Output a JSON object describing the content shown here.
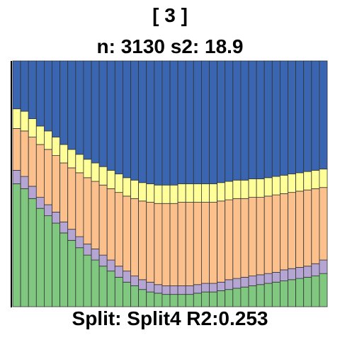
{
  "header": {
    "node": "[ 3 ]",
    "stats": "n: 3130 s2: 18.9"
  },
  "footer": {
    "split": "Split: Split4 R2:0.253"
  },
  "colors": {
    "green": "#80c880",
    "purple": "#b4a5d2",
    "orange": "#fcc08c",
    "yellow": "#ffff99",
    "blue": "#3a65b0",
    "edge": "#333333"
  },
  "chart_data": {
    "type": "bar",
    "stacked": true,
    "normalized": true,
    "bar_count": 40,
    "ylim": [
      0,
      1
    ],
    "series": [
      {
        "color": "green",
        "values": [
          0.5,
          0.48,
          0.44,
          0.4,
          0.37,
          0.34,
          0.3,
          0.27,
          0.24,
          0.21,
          0.19,
          0.165,
          0.145,
          0.12,
          0.1,
          0.085,
          0.07,
          0.06,
          0.055,
          0.05,
          0.05,
          0.05,
          0.05,
          0.055,
          0.06,
          0.06,
          0.065,
          0.07,
          0.075,
          0.08,
          0.085,
          0.09,
          0.095,
          0.1,
          0.105,
          0.11,
          0.115,
          0.12,
          0.125,
          0.135
        ]
      },
      {
        "color": "purple",
        "values": [
          0.055,
          0.05,
          0.05,
          0.045,
          0.045,
          0.045,
          0.045,
          0.045,
          0.045,
          0.045,
          0.045,
          0.045,
          0.045,
          0.045,
          0.045,
          0.04,
          0.04,
          0.04,
          0.035,
          0.035,
          0.035,
          0.035,
          0.035,
          0.035,
          0.035,
          0.035,
          0.035,
          0.04,
          0.04,
          0.04,
          0.04,
          0.04,
          0.04,
          0.04,
          0.045,
          0.045,
          0.045,
          0.045,
          0.05,
          0.055
        ]
      },
      {
        "color": "orange",
        "values": [
          0.17,
          0.185,
          0.2,
          0.215,
          0.225,
          0.23,
          0.24,
          0.25,
          0.26,
          0.27,
          0.275,
          0.285,
          0.29,
          0.3,
          0.305,
          0.315,
          0.32,
          0.325,
          0.33,
          0.335,
          0.335,
          0.34,
          0.34,
          0.335,
          0.33,
          0.33,
          0.33,
          0.325,
          0.325,
          0.32,
          0.32,
          0.315,
          0.315,
          0.315,
          0.31,
          0.31,
          0.31,
          0.31,
          0.305,
          0.295
        ]
      },
      {
        "color": "yellow",
        "values": [
          0.08,
          0.08,
          0.075,
          0.075,
          0.075,
          0.075,
          0.075,
          0.075,
          0.075,
          0.075,
          0.075,
          0.075,
          0.075,
          0.075,
          0.075,
          0.075,
          0.075,
          0.075,
          0.075,
          0.075,
          0.075,
          0.075,
          0.075,
          0.075,
          0.075,
          0.075,
          0.075,
          0.075,
          0.075,
          0.075,
          0.075,
          0.075,
          0.075,
          0.075,
          0.075,
          0.075,
          0.075,
          0.075,
          0.075,
          0.075
        ]
      },
      {
        "color": "blue",
        "values": [
          0.195,
          0.205,
          0.235,
          0.265,
          0.285,
          0.31,
          0.34,
          0.36,
          0.38,
          0.4,
          0.415,
          0.43,
          0.445,
          0.46,
          0.475,
          0.485,
          0.495,
          0.5,
          0.505,
          0.505,
          0.505,
          0.5,
          0.5,
          0.5,
          0.5,
          0.5,
          0.495,
          0.49,
          0.485,
          0.485,
          0.48,
          0.48,
          0.475,
          0.47,
          0.465,
          0.46,
          0.455,
          0.45,
          0.445,
          0.44
        ]
      }
    ]
  }
}
